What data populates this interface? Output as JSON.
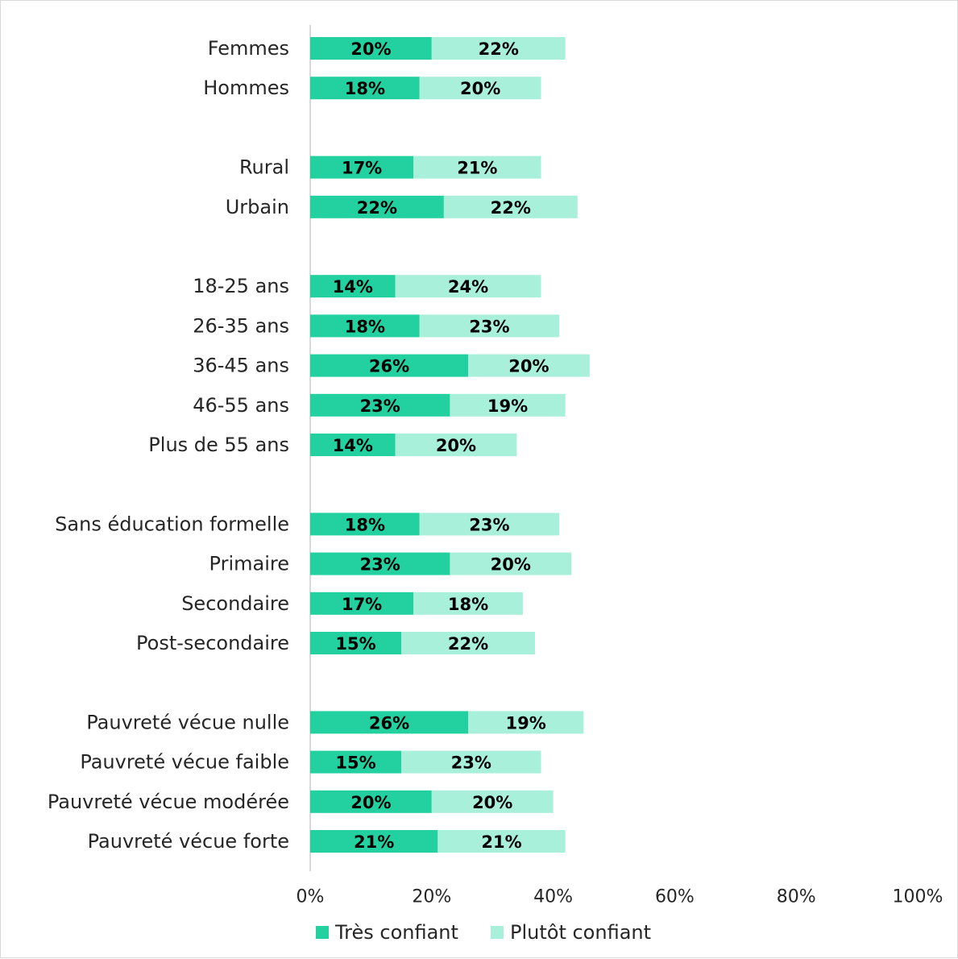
{
  "chart_data": {
    "type": "bar",
    "orientation": "horizontal",
    "stacked": true,
    "categories": [
      "Femmes",
      "Hommes",
      "Rural",
      "Urbain",
      "18-25 ans",
      "26-35 ans",
      "36-45 ans",
      "46-55 ans",
      "Plus de 55 ans",
      "Sans éducation formelle",
      "Primaire",
      "Secondaire",
      "Post-secondaire",
      "Pauvreté vécue nulle",
      "Pauvreté vécue faible",
      "Pauvreté vécue modérée",
      "Pauvreté vécue forte"
    ],
    "groups": [
      2,
      2,
      5,
      4,
      4
    ],
    "series": [
      {
        "name": "Très confiant",
        "color": "#23D0A0",
        "values": [
          20,
          18,
          17,
          22,
          14,
          18,
          26,
          23,
          14,
          18,
          23,
          17,
          15,
          26,
          15,
          20,
          21
        ],
        "labels": [
          "20%",
          "18%",
          "17%",
          "22%",
          "14%",
          "18%",
          "26%",
          "23%",
          "14%",
          "18%",
          "23%",
          "17%",
          "15%",
          "26%",
          "15%",
          "20%",
          "21%"
        ]
      },
      {
        "name": "Plutôt confiant",
        "color": "#A8F0D9",
        "values": [
          22,
          20,
          21,
          22,
          24,
          23,
          20,
          19,
          20,
          23,
          20,
          18,
          22,
          19,
          23,
          20,
          21
        ],
        "labels": [
          "22%",
          "20%",
          "21%",
          "22%",
          "24%",
          "23%",
          "20%",
          "19%",
          "20%",
          "23%",
          "20%",
          "18%",
          "22%",
          "19%",
          "23%",
          "20%",
          "21%"
        ]
      }
    ],
    "xlim": [
      0,
      100
    ],
    "x_ticks": [
      "0%",
      "20%",
      "40%",
      "60%",
      "80%",
      "100%"
    ],
    "title": "",
    "xlabel": "",
    "ylabel": "",
    "grid": false,
    "legend_position": "bottom",
    "axis_color": "#d9d9d9"
  }
}
